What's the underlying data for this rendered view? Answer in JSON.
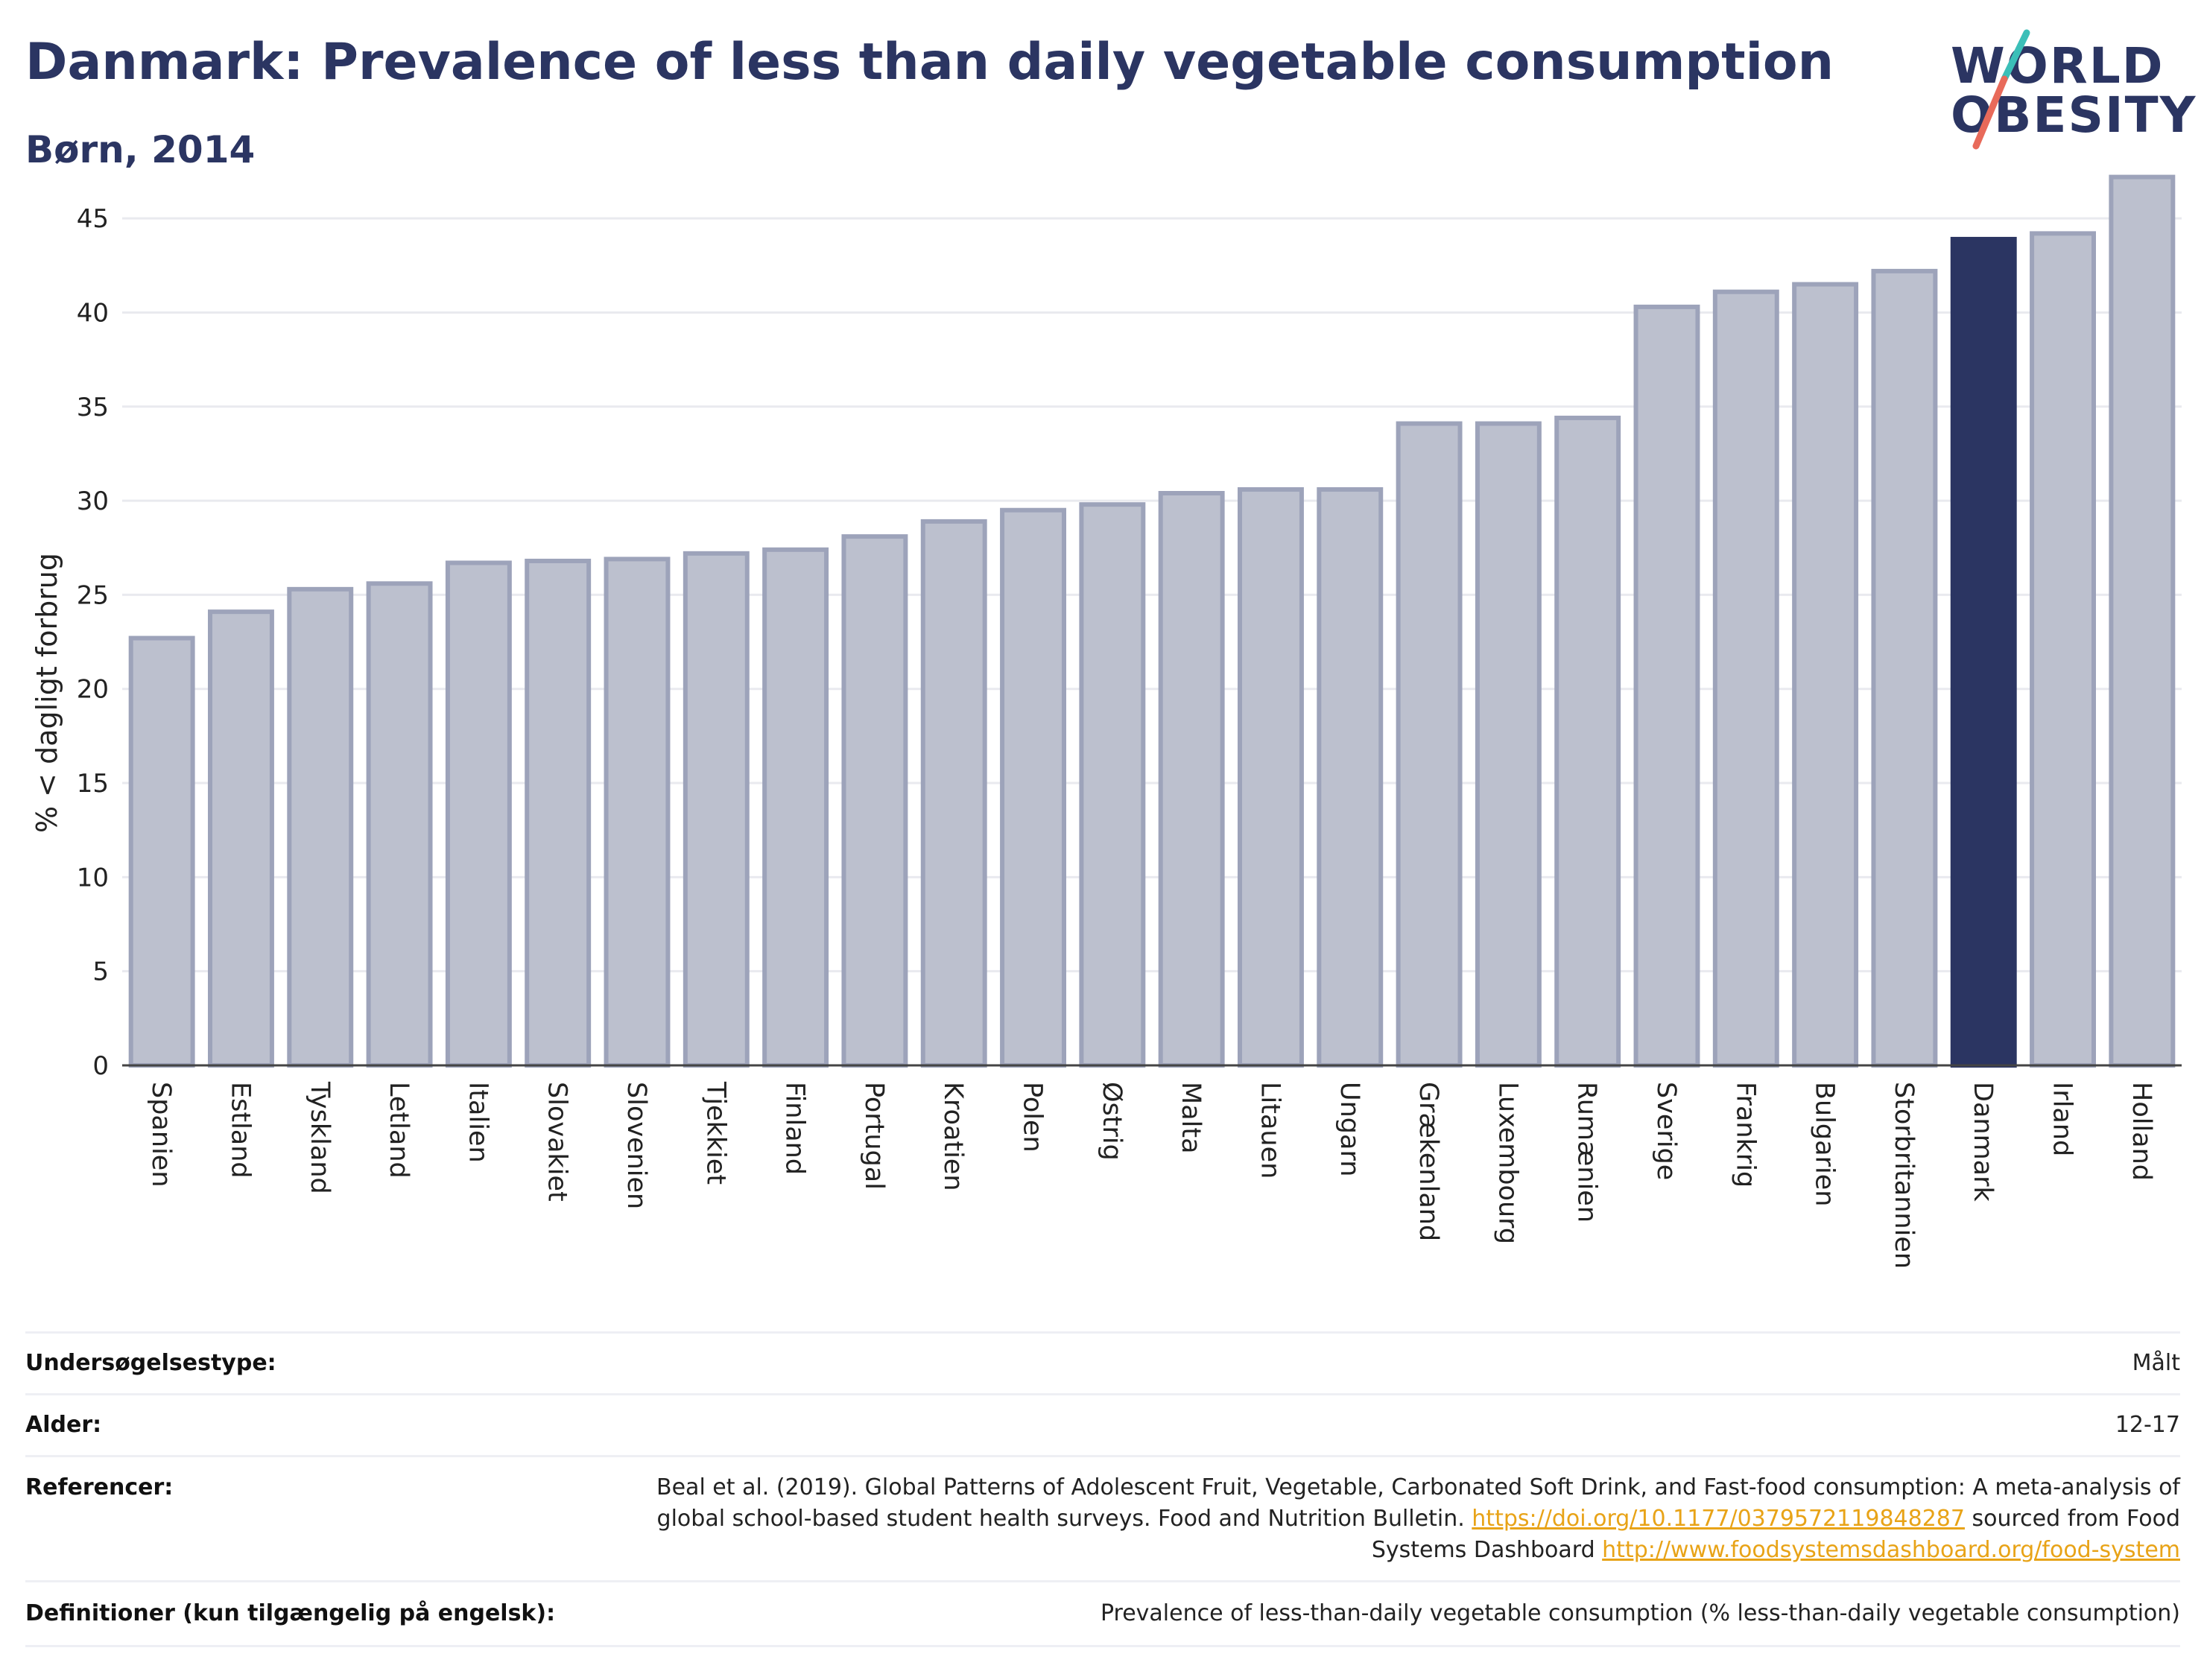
{
  "header": {
    "title": "Danmark: Prevalence of less than daily vegetable consumption",
    "subtitle": "Børn, 2014"
  },
  "logo": {
    "line1": "WORLD",
    "line2": "OBESITY",
    "accent_top": "#3bbfb8",
    "accent_bottom": "#e86a5a"
  },
  "colors": {
    "bar": "#bcc0ce",
    "bar_edge": "#9da3ba",
    "highlight": "#2b3562"
  },
  "chart_data": {
    "type": "bar",
    "title": "Danmark: Prevalence of less than daily vegetable consumption",
    "subtitle": "Børn, 2014",
    "ylabel": "% < dagligt forbrug",
    "xlabel": "",
    "ylim": [
      0,
      47.5
    ],
    "yticks": [
      0,
      5,
      10,
      15,
      20,
      25,
      30,
      35,
      40,
      45
    ],
    "grid": true,
    "highlight": "Danmark",
    "categories": [
      "Spanien",
      "Estland",
      "Tyskland",
      "Letland",
      "Italien",
      "Slovakiet",
      "Slovenien",
      "Tjekkiet",
      "Finland",
      "Portugal",
      "Kroatien",
      "Polen",
      "Østrig",
      "Malta",
      "Litauen",
      "Ungarn",
      "Grækenland",
      "Luxembourg",
      "Rumænien",
      "Sverige",
      "Frankrig",
      "Bulgarien",
      "Storbritannien",
      "Danmark",
      "Irland",
      "Holland"
    ],
    "values": [
      22.7,
      24.1,
      25.3,
      25.6,
      26.7,
      26.8,
      26.9,
      27.2,
      27.4,
      28.1,
      28.9,
      29.5,
      29.8,
      30.4,
      30.6,
      30.6,
      34.1,
      34.1,
      34.4,
      40.3,
      41.1,
      41.5,
      42.2,
      43.9,
      44.2,
      47.2
    ]
  },
  "meta": {
    "survey_type_label": "Undersøgelsestype:",
    "survey_type_value": "Målt",
    "age_label": "Alder:",
    "age_value": "12-17",
    "references_label": "Referencer:",
    "references_text_1": "Beal et al. (2019). Global Patterns of Adolescent Fruit, Vegetable, Carbonated Soft Drink, and Fast-food consumption: A meta-analysis of global school-based student health surveys. Food and Nutrition Bulletin. ",
    "references_link_1": "https://doi.org/10.1177/0379572119848287",
    "references_text_2": " sourced from Food Systems Dashboard ",
    "references_link_2": "http://www.foodsystemsdashboard.org/food-system",
    "definitions_label": "Definitioner (kun tilgængelig på engelsk):",
    "definitions_value": "Prevalence of less-than-daily vegetable consumption (% less-than-daily vegetable consumption)"
  }
}
